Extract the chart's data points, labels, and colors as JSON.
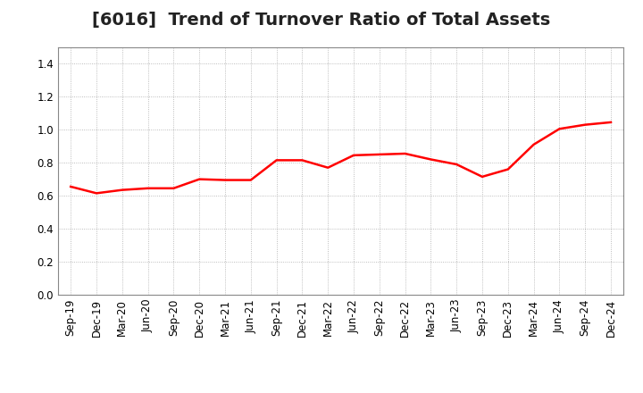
{
  "title": "[6016]  Trend of Turnover Ratio of Total Assets",
  "labels": [
    "Sep-19",
    "Dec-19",
    "Mar-20",
    "Jun-20",
    "Sep-20",
    "Dec-20",
    "Mar-21",
    "Jun-21",
    "Sep-21",
    "Dec-21",
    "Mar-22",
    "Jun-22",
    "Sep-22",
    "Dec-22",
    "Mar-23",
    "Jun-23",
    "Sep-23",
    "Dec-23",
    "Mar-24",
    "Jun-24",
    "Sep-24",
    "Dec-24"
  ],
  "values": [
    0.655,
    0.615,
    0.635,
    0.645,
    0.645,
    0.7,
    0.695,
    0.695,
    0.815,
    0.815,
    0.77,
    0.845,
    0.85,
    0.855,
    0.82,
    0.79,
    0.715,
    0.76,
    0.91,
    1.005,
    1.03,
    1.045
  ],
  "line_color": "#ff0000",
  "line_width": 1.8,
  "ylim": [
    0.0,
    1.5
  ],
  "yticks": [
    0.0,
    0.2,
    0.4,
    0.6,
    0.8,
    1.0,
    1.2,
    1.4
  ],
  "grid_color": "#aaaaaa",
  "grid_linestyle": ":",
  "background_color": "#ffffff",
  "title_fontsize": 14,
  "tick_fontsize": 8.5
}
